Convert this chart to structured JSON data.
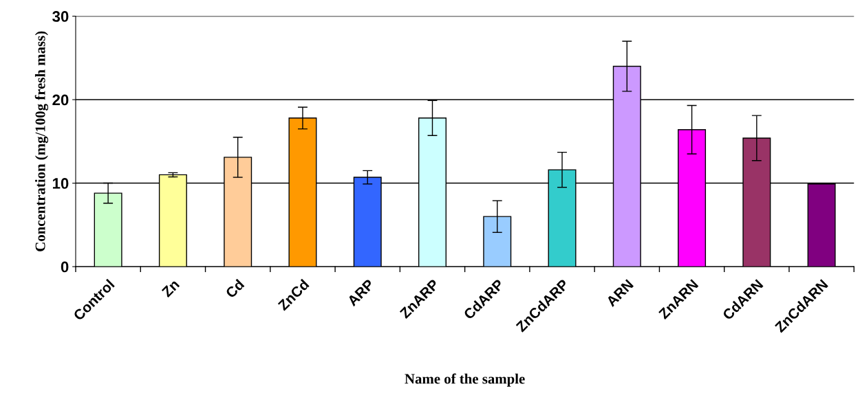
{
  "chart_data": {
    "type": "bar",
    "xlabel": "Name of the sample",
    "ylabel": "Concentration (mg/100g fresh mass)",
    "categories": [
      "Control",
      "Zn",
      "Cd",
      "ZnCd",
      "ARP",
      "ZnARP",
      "CdARP",
      "ZnCdARP",
      "ARN",
      "ZnARN",
      "CdARN",
      "ZnCdARN"
    ],
    "values": [
      8.8,
      11.0,
      13.1,
      17.8,
      10.7,
      17.8,
      6.0,
      11.6,
      24.0,
      16.4,
      15.4,
      9.9
    ],
    "errors": [
      1.2,
      0.25,
      2.4,
      1.3,
      0.8,
      2.1,
      1.9,
      2.1,
      3.0,
      2.9,
      2.7,
      null
    ],
    "colors": [
      "#ccffcc",
      "#ffff99",
      "#ffcc99",
      "#ff9900",
      "#3366ff",
      "#ccffff",
      "#99ccff",
      "#33cccc",
      "#cc99ff",
      "#ff00ff",
      "#993366",
      "#800080"
    ],
    "ylim": [
      0,
      30
    ],
    "yticks": [
      0,
      10,
      20,
      30
    ],
    "grid": "y",
    "legend": false
  }
}
